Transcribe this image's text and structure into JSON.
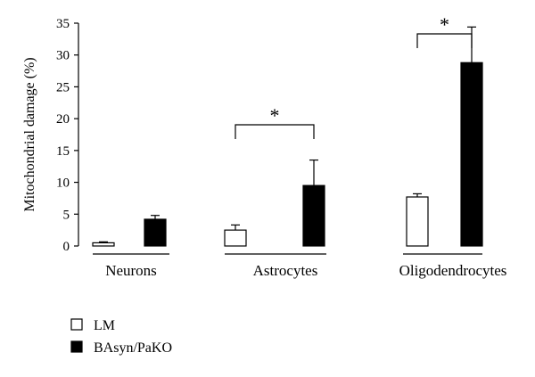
{
  "chart_data": {
    "type": "bar",
    "ylabel": "Mitochondrial damage (%)",
    "ylim": [
      0,
      35
    ],
    "yticks": [
      "0",
      "5",
      "10",
      "15",
      "20",
      "25",
      "30",
      "35"
    ],
    "categories": [
      "Neurons",
      "Astrocytes",
      "Oligodendrocytes"
    ],
    "series": [
      {
        "name": "LM",
        "values": [
          0.5,
          2.5,
          7.7
        ],
        "errors": [
          0.15,
          0.8,
          0.5
        ],
        "color": "#ffffff"
      },
      {
        "name": "BAsyn/PaKO",
        "values": [
          4.2,
          9.5,
          28.8
        ],
        "errors": [
          0.6,
          4.0,
          5.6
        ],
        "color": "#000000"
      }
    ],
    "significance": [
      {
        "category": "Astrocytes",
        "label": "*"
      },
      {
        "category": "Oligodendrocytes",
        "label": "*"
      }
    ],
    "legend_position": "bottom-left",
    "grid": false
  }
}
